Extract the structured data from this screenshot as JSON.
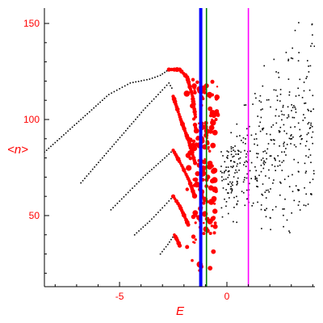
{
  "chart_data": {
    "type": "scatter",
    "xlabel": "E",
    "ylabel": "<n>",
    "xlim": [
      -8.5,
      4.1
    ],
    "ylim": [
      13,
      158
    ],
    "xticks": [
      -5,
      0
    ],
    "yticks": [
      50,
      100,
      150
    ],
    "vertical_lines": [
      {
        "x": -1.22,
        "color": "#0000ff",
        "style": "thick"
      },
      {
        "x": -0.95,
        "color": "#008000",
        "style": "thin"
      },
      {
        "x": 1.0,
        "color": "#ff00ff",
        "style": "thin"
      }
    ],
    "band_curves": [
      {
        "color": "#000000",
        "points": [
          [
            -8.5,
            83
          ],
          [
            -7.0,
            98
          ],
          [
            -5.5,
            113
          ],
          [
            -4.5,
            119
          ],
          [
            -3.6,
            121
          ],
          [
            -3.1,
            123
          ],
          [
            -2.7,
            126
          ]
        ]
      },
      {
        "color": "#ff0000",
        "points": [
          [
            -2.7,
            126
          ],
          [
            -2.2,
            126
          ],
          [
            -1.85,
            122
          ],
          [
            -1.6,
            112
          ],
          [
            -1.45,
            100
          ]
        ]
      },
      {
        "color": "#000000",
        "points": [
          [
            -6.8,
            67
          ],
          [
            -5.8,
            80
          ],
          [
            -4.8,
            93
          ],
          [
            -3.8,
            106
          ],
          [
            -3.2,
            113
          ],
          [
            -2.7,
            119
          ],
          [
            -2.5,
            115
          ]
        ]
      },
      {
        "color": "#ff0000",
        "points": [
          [
            -2.5,
            112
          ],
          [
            -2.15,
            100
          ],
          [
            -1.75,
            88
          ],
          [
            -1.45,
            76
          ]
        ]
      },
      {
        "color": "#000000",
        "points": [
          [
            -5.4,
            53
          ],
          [
            -4.6,
            62
          ],
          [
            -3.8,
            71
          ],
          [
            -3.0,
            79
          ],
          [
            -2.5,
            84
          ]
        ]
      },
      {
        "color": "#ff0000",
        "points": [
          [
            -2.5,
            84
          ],
          [
            -2.1,
            76
          ],
          [
            -1.75,
            68
          ],
          [
            -1.5,
            60
          ]
        ]
      },
      {
        "color": "#000000",
        "points": [
          [
            -4.3,
            40
          ],
          [
            -3.6,
            47
          ],
          [
            -3.0,
            54
          ],
          [
            -2.5,
            60
          ]
        ]
      },
      {
        "color": "#ff0000",
        "points": [
          [
            -2.5,
            60
          ],
          [
            -2.2,
            55
          ],
          [
            -1.95,
            49
          ],
          [
            -1.75,
            44
          ]
        ]
      },
      {
        "color": "#000000",
        "points": [
          [
            -3.1,
            30
          ],
          [
            -2.75,
            35
          ],
          [
            -2.45,
            40
          ]
        ]
      },
      {
        "color": "#ff0000",
        "points": [
          [
            -2.45,
            40
          ],
          [
            -2.3,
            37
          ],
          [
            -2.15,
            33
          ]
        ]
      }
    ],
    "red_cluster": {
      "x_range": [
        -1.9,
        -0.4
      ],
      "y_range": [
        20,
        125
      ]
    },
    "black_cloud": {
      "x_range": [
        -0.3,
        4.1
      ],
      "y_range": [
        40,
        158
      ]
    }
  }
}
